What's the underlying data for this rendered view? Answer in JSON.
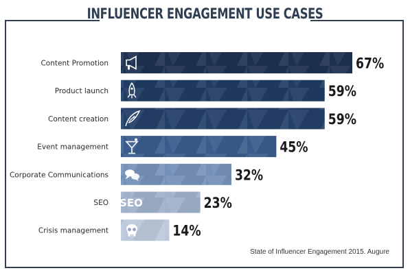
{
  "chart_data": {
    "type": "bar",
    "orientation": "horizontal",
    "title": "INFLUENCER ENGAGEMENT USE CASES",
    "categories": [
      "Content Promotion",
      "Product launch",
      "Content creation",
      "Event management",
      "Corporate Communications",
      "SEO",
      "Crisis management"
    ],
    "values": [
      67,
      59,
      59,
      45,
      32,
      23,
      14
    ],
    "value_labels": [
      "67%",
      "59%",
      "59%",
      "45%",
      "32%",
      "23%",
      "14%"
    ],
    "icons": [
      "megaphone-icon",
      "rocket-icon",
      "quill-icon",
      "cocktail-icon",
      "speech-bubbles-icon",
      "seo-text-icon",
      "skull-icon"
    ],
    "bar_colors": [
      "#1e3150",
      "#213b63",
      "#243f68",
      "#3b5c8c",
      "#7691b9",
      "#9fb1cb",
      "#bcc9dc"
    ],
    "xlim": [
      0,
      100
    ],
    "grid": false,
    "legend": "none",
    "seo_icon_text": "SEO"
  },
  "source": "State of Influencer Engagement 2015. Augure"
}
